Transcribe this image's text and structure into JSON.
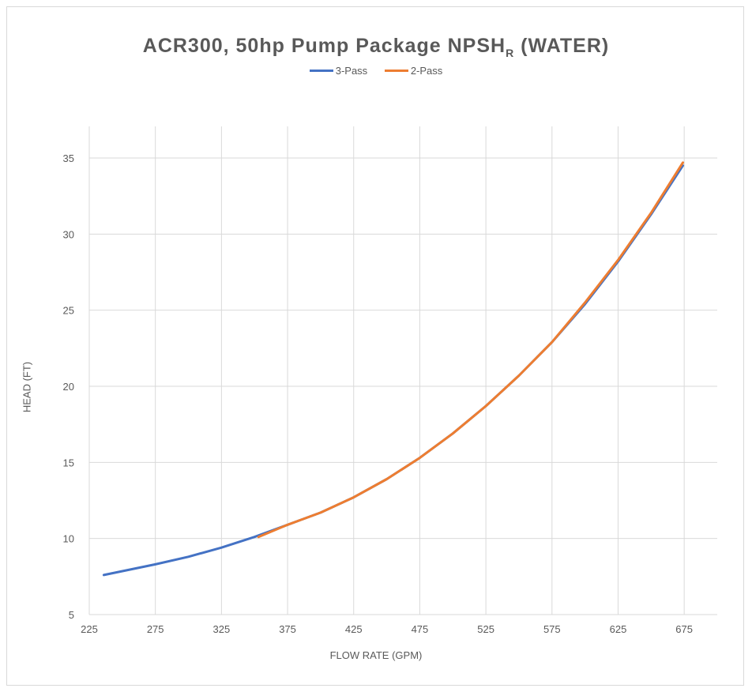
{
  "chart_data": {
    "type": "line",
    "title_main": "ACR300, 50hp Pump Package NPSH",
    "title_sub": "R",
    "title_tail": " (WATER)",
    "xlabel": "FLOW RATE (GPM)",
    "ylabel": "HEAD (FT)",
    "xlim": [
      225,
      700
    ],
    "ylim": [
      5,
      37
    ],
    "xticks": [
      225,
      275,
      325,
      375,
      425,
      475,
      525,
      575,
      625,
      675
    ],
    "yticks": [
      5,
      10,
      15,
      20,
      25,
      30,
      35
    ],
    "grid": true,
    "legend_position": "top",
    "series": [
      {
        "name": "3-Pass",
        "color": "#4472C4",
        "x": [
          236,
          275,
          300,
          325,
          350,
          375,
          400,
          425,
          450,
          475,
          500,
          525,
          550,
          575,
          600,
          625,
          650,
          674
        ],
        "y": [
          7.6,
          8.3,
          8.8,
          9.4,
          10.1,
          10.9,
          11.7,
          12.7,
          13.9,
          15.3,
          16.9,
          18.7,
          20.7,
          22.9,
          25.4,
          28.2,
          31.3,
          34.5
        ]
      },
      {
        "name": "2-Pass",
        "color": "#ED7D31",
        "x": [
          353,
          375,
          400,
          425,
          450,
          475,
          500,
          525,
          550,
          575,
          600,
          625,
          650,
          674
        ],
        "y": [
          10.1,
          10.9,
          11.7,
          12.7,
          13.9,
          15.3,
          16.9,
          18.7,
          20.7,
          22.9,
          25.5,
          28.3,
          31.4,
          34.7
        ]
      }
    ]
  }
}
